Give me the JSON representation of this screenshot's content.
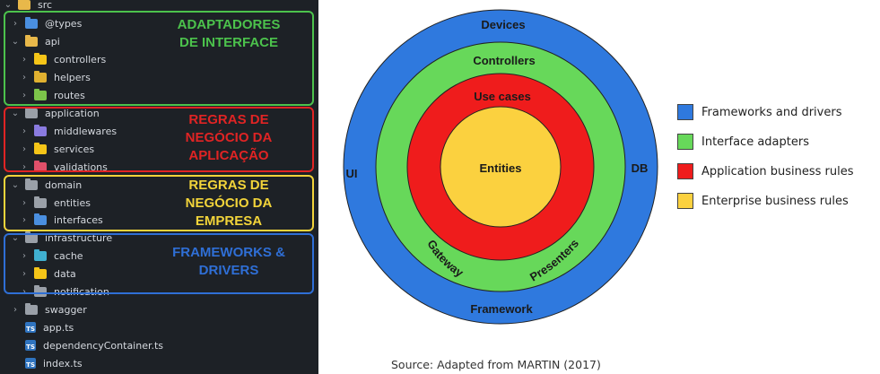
{
  "explorer": {
    "root": "src",
    "items": [
      {
        "label": "@types",
        "kind": "folder",
        "color": "#4a8fe0",
        "chevron": true,
        "indent": 1
      },
      {
        "label": "api",
        "kind": "folder",
        "color": "#e8b84a",
        "chevron": true,
        "indent": 1,
        "open": true
      },
      {
        "label": "controllers",
        "kind": "folder",
        "color": "#f5c518",
        "chevron": true,
        "indent": 2
      },
      {
        "label": "helpers",
        "kind": "folder",
        "color": "#e0b030",
        "chevron": true,
        "indent": 2
      },
      {
        "label": "routes",
        "kind": "folder",
        "color": "#7cc44a",
        "chevron": true,
        "indent": 2
      },
      {
        "label": "application",
        "kind": "folder",
        "color": "#9aa0a8",
        "chevron": true,
        "indent": 1,
        "open": true
      },
      {
        "label": "middlewares",
        "kind": "folder",
        "color": "#8a7be0",
        "chevron": true,
        "indent": 2
      },
      {
        "label": "services",
        "kind": "folder",
        "color": "#f5c518",
        "chevron": true,
        "indent": 2
      },
      {
        "label": "validations",
        "kind": "folder",
        "color": "#e0506a",
        "chevron": true,
        "indent": 2
      },
      {
        "label": "domain",
        "kind": "folder",
        "color": "#9aa0a8",
        "chevron": true,
        "indent": 1,
        "open": true
      },
      {
        "label": "entities",
        "kind": "folder",
        "color": "#9aa0a8",
        "chevron": true,
        "indent": 2
      },
      {
        "label": "interfaces",
        "kind": "folder",
        "color": "#4a8fe0",
        "chevron": true,
        "indent": 2
      },
      {
        "label": "infrastructure",
        "kind": "folder",
        "color": "#9aa0a8",
        "chevron": true,
        "indent": 1,
        "open": true
      },
      {
        "label": "cache",
        "kind": "folder",
        "color": "#40b0d0",
        "chevron": true,
        "indent": 2
      },
      {
        "label": "data",
        "kind": "folder",
        "color": "#f5c518",
        "chevron": true,
        "indent": 2
      },
      {
        "label": "notification",
        "kind": "folder",
        "color": "#9aa0a8",
        "chevron": true,
        "indent": 2
      },
      {
        "label": "swagger",
        "kind": "folder",
        "color": "#9aa0a8",
        "chevron": true,
        "indent": 1
      },
      {
        "label": "app.ts",
        "kind": "ts",
        "color": "#2f74c0",
        "chevron": false,
        "indent": 1
      },
      {
        "label": "dependencyContainer.ts",
        "kind": "ts",
        "color": "#2f74c0",
        "chevron": false,
        "indent": 1
      },
      {
        "label": "index.ts",
        "kind": "ts",
        "color": "#2f74c0",
        "chevron": false,
        "indent": 1
      }
    ],
    "ts_badge": "TS"
  },
  "boxes": [
    {
      "label": "ADAPTADORES\nDE INTERFACE",
      "color": "#4cc24c"
    },
    {
      "label": "REGRAS DE\nNEGÓCIO DA\nAPLICAÇÃO",
      "color": "#e02424"
    },
    {
      "label": "REGRAS DE\nNEGÓCIO DA\nEMPRESA",
      "color": "#f2d43a"
    },
    {
      "label": "FRAMEWORKS &\nDRIVERS",
      "color": "#2f6fd6"
    }
  ],
  "diagram": {
    "rings": [
      {
        "name": "Frameworks and drivers",
        "color": "#2f79de"
      },
      {
        "name": "Interface adapters",
        "color": "#67d85a"
      },
      {
        "name": "Application business rules",
        "color": "#ef1c1c"
      },
      {
        "name": "Enterprise business rules",
        "color": "#fbd13f"
      }
    ],
    "labels": {
      "devices": "Devices",
      "controllers": "Controllers",
      "use_cases": "Use cases",
      "entities": "Entities",
      "ui": "UI",
      "db": "DB",
      "gateway": "Gateway",
      "presenters": "Presenters",
      "framework": "Framework"
    },
    "source": "Source: Adapted from MARTIN (2017)"
  }
}
